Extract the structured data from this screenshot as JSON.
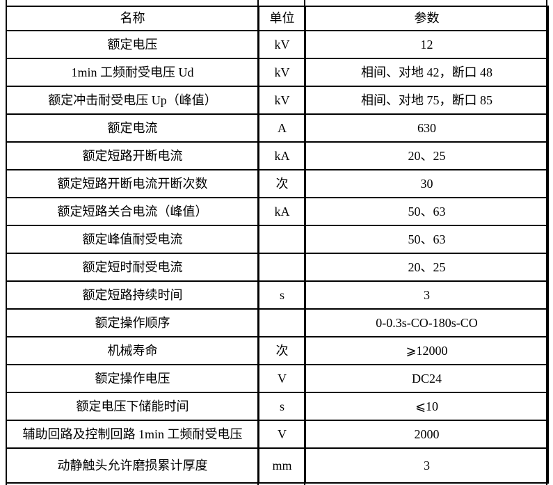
{
  "page": {
    "background_color": "#ffffff",
    "gridline_color": "#000000",
    "text_color": "#000000"
  },
  "table": {
    "columns": [
      {
        "key": "name",
        "label": "名称"
      },
      {
        "key": "unit",
        "label": "单位"
      },
      {
        "key": "param",
        "label": "参数"
      }
    ],
    "rows": [
      {
        "name": "额定电压",
        "unit": "kV",
        "param": "12"
      },
      {
        "name": "1min 工频耐受电压 Ud",
        "unit": "kV",
        "param": "相间、对地 42，断口 48"
      },
      {
        "name": "额定冲击耐受电压 Up（峰值）",
        "unit": "kV",
        "param": "相间、对地 75，断口 85"
      },
      {
        "name": "额定电流",
        "unit": "A",
        "param": "630"
      },
      {
        "name": "额定短路开断电流",
        "unit": "kA",
        "param": "20、25"
      },
      {
        "name": "额定短路开断电流开断次数",
        "unit": "次",
        "param": "30"
      },
      {
        "name": "额定短路关合电流（峰值）",
        "unit": "kA",
        "param": "50、63"
      },
      {
        "name": "额定峰值耐受电流",
        "unit": "",
        "param": "50、63"
      },
      {
        "name": "额定短时耐受电流",
        "unit": "",
        "param": "20、25"
      },
      {
        "name": "额定短路持续时间",
        "unit": "s",
        "param": "3"
      },
      {
        "name": "额定操作顺序",
        "unit": "",
        "param": "0-0.3s-CO-180s-CO"
      },
      {
        "name": "机械寿命",
        "unit": "次",
        "param": "⩾12000"
      },
      {
        "name": "额定操作电压",
        "unit": "V",
        "param": "DC24"
      },
      {
        "name": "额定电压下储能时间",
        "unit": "s",
        "param": "⩽10"
      },
      {
        "name": "辅助回路及控制回路 1min 工频耐受电压",
        "unit": "V",
        "param": "2000"
      },
      {
        "name": "动静触头允许磨损累计厚度",
        "unit": "mm",
        "param": "3"
      }
    ]
  }
}
